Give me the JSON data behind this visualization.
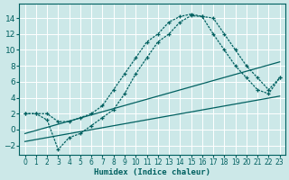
{
  "xlabel": "Humidex (Indice chaleur)",
  "bg_color": "#cce8e8",
  "grid_color": "#b8d8d8",
  "line_color": "#006060",
  "xlim": [
    -0.5,
    23.5
  ],
  "ylim": [
    -3.2,
    15.8
  ],
  "xticks": [
    0,
    1,
    2,
    3,
    4,
    5,
    6,
    7,
    8,
    9,
    10,
    11,
    12,
    13,
    14,
    15,
    16,
    17,
    18,
    19,
    20,
    21,
    22,
    23
  ],
  "yticks": [
    -2,
    0,
    2,
    4,
    6,
    8,
    10,
    12,
    14
  ],
  "curve1_x": [
    0,
    1,
    2,
    3,
    4,
    5,
    6,
    7,
    8,
    9,
    10,
    11,
    12,
    13,
    14,
    15,
    16,
    17,
    18,
    19,
    20,
    21,
    22,
    23
  ],
  "curve1_y": [
    2,
    2,
    2,
    1,
    1,
    1.5,
    2,
    3,
    5,
    7,
    9,
    11,
    12,
    13.5,
    14.2,
    14.5,
    14.2,
    14.0,
    12,
    10,
    8,
    6.5,
    5,
    6.5
  ],
  "curve2_x": [
    0,
    1,
    2,
    3,
    4,
    5,
    6,
    7,
    8,
    9,
    10,
    11,
    12,
    13,
    14,
    15,
    16,
    17,
    18,
    19,
    20,
    21,
    22,
    23
  ],
  "curve2_y": [
    2,
    2,
    1.2,
    -2.5,
    -1,
    -0.5,
    0.5,
    1.5,
    2.5,
    4.5,
    7,
    9,
    11,
    12,
    13.5,
    14.3,
    14.2,
    12,
    10,
    8,
    6.5,
    5,
    4.5,
    6.5
  ],
  "curve3_x": [
    0,
    23
  ],
  "curve3_y": [
    -1.5,
    4.2
  ],
  "curve4_x": [
    0,
    23
  ],
  "curve4_y": [
    -0.5,
    8.5
  ]
}
